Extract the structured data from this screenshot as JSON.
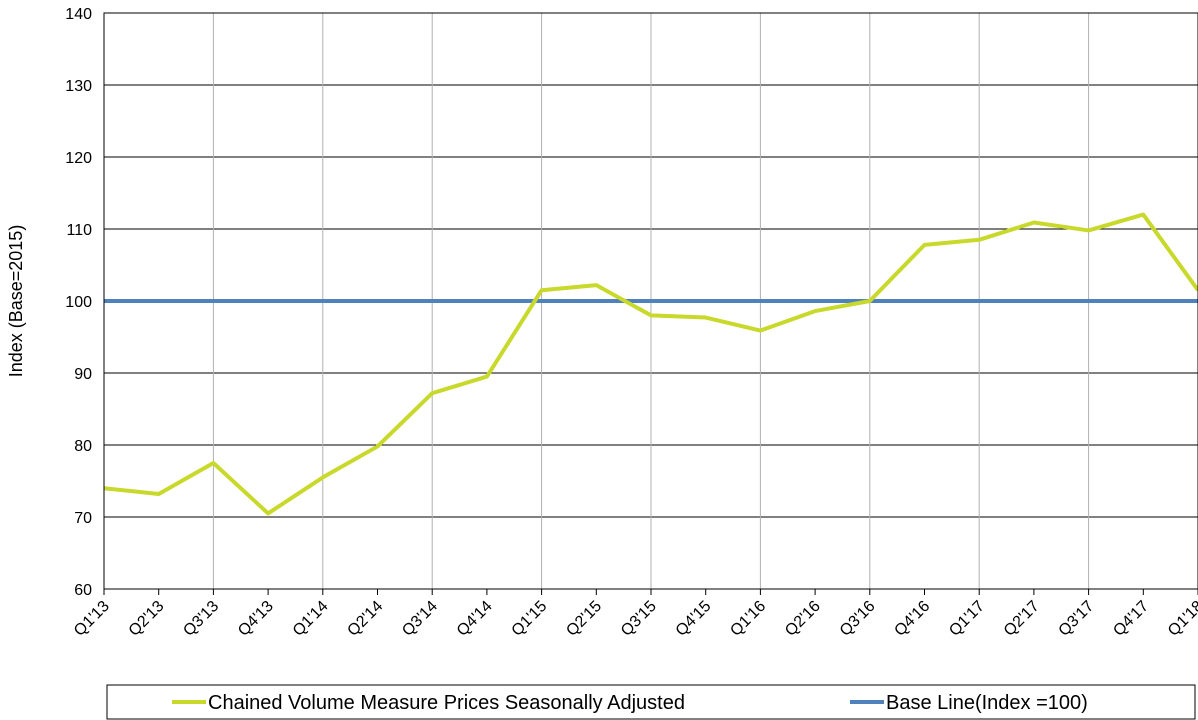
{
  "chart_data": {
    "type": "line",
    "title": "",
    "xlabel": "",
    "ylabel": "Index (Base=2015)",
    "ylim": [
      60,
      140
    ],
    "yticks": [
      60,
      70,
      80,
      90,
      100,
      110,
      120,
      130,
      140
    ],
    "categories": [
      "Q1'13",
      "Q2'13",
      "Q3'13",
      "Q4'13",
      "Q1'14",
      "Q2'14",
      "Q3'14",
      "Q4'14",
      "Q1'15",
      "Q2'15",
      "Q3'15",
      "Q4'15",
      "Q1'16",
      "Q2'16",
      "Q3'16",
      "Q4'16",
      "Q1'17",
      "Q2'17",
      "Q3'17",
      "Q4'17",
      "Q1'18"
    ],
    "grid": true,
    "legend_position": "bottom",
    "series": [
      {
        "name": "Chained Volume Measure Prices Seasonally Adjusted",
        "color": "#c8d92b",
        "values": [
          74.0,
          73.2,
          77.5,
          70.5,
          75.5,
          79.8,
          87.2,
          89.5,
          101.5,
          102.2,
          98.0,
          97.7,
          95.9,
          98.6,
          100.0,
          107.8,
          108.5,
          110.9,
          109.8,
          112.0,
          101.5
        ]
      },
      {
        "name": "Base Line(Index =100)",
        "color": "#4f81bd",
        "values": [
          100,
          100,
          100,
          100,
          100,
          100,
          100,
          100,
          100,
          100,
          100,
          100,
          100,
          100,
          100,
          100,
          100,
          100,
          100,
          100,
          100
        ]
      }
    ]
  }
}
